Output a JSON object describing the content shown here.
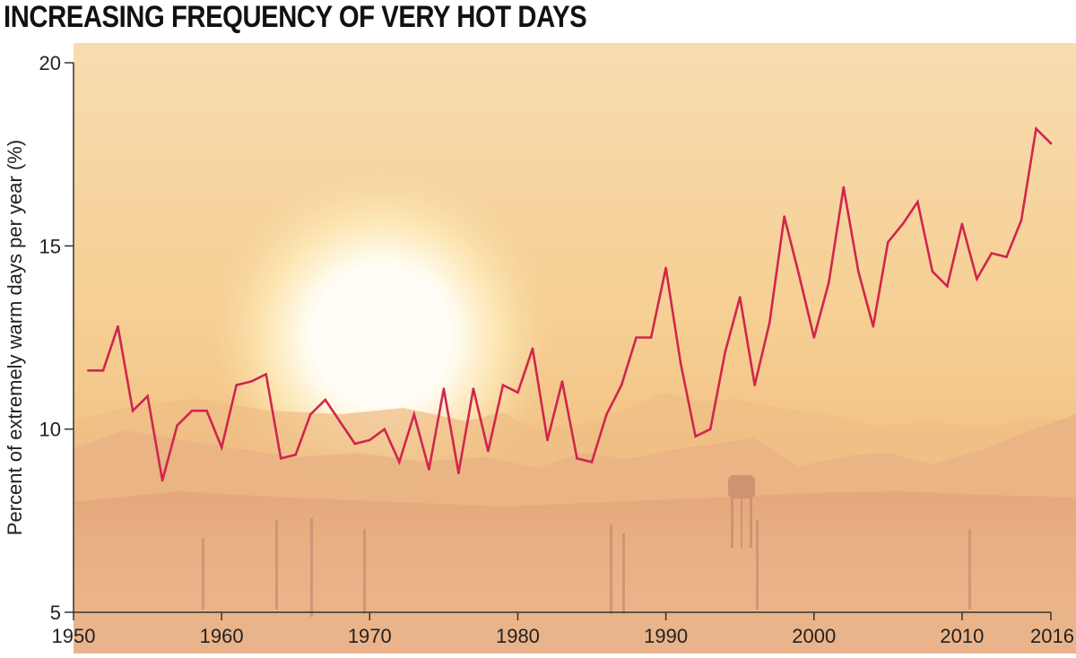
{
  "title": "INCREASING FREQUENCY OF VERY HOT DAYS",
  "colors": {
    "line": "#d0264e",
    "axis": "#333333",
    "sky_top": "#f7d9a8",
    "sky_mid": "#f5c98a",
    "ground": "#e8b07e"
  },
  "chart_data": {
    "type": "line",
    "title": "INCREASING FREQUENCY OF VERY HOT DAYS",
    "xlabel": "",
    "ylabel": "Percent of extremely warm days per year (%)",
    "xlim": [
      1950,
      2016
    ],
    "ylim": [
      5,
      20
    ],
    "x_ticks": [
      1950,
      1960,
      1970,
      1980,
      1990,
      2000,
      2010,
      2016
    ],
    "x_tick_labels": [
      "1950",
      "1960",
      "1970",
      "1980",
      "1990",
      "2000",
      "2010",
      "2016"
    ],
    "y_ticks": [
      5,
      10,
      15,
      20
    ],
    "y_tick_labels": [
      "5",
      "10",
      "15",
      "20"
    ],
    "grid": false,
    "series": [
      {
        "x": [
          1951,
          1952,
          1953,
          1954,
          1955,
          1956,
          1957,
          1958,
          1959,
          1960,
          1961,
          1962,
          1963,
          1964,
          1965,
          1966,
          1967,
          1968,
          1969,
          1970,
          1971,
          1972,
          1973,
          1974,
          1975,
          1976,
          1977,
          1978,
          1979,
          1980,
          1981,
          1982,
          1983,
          1984,
          1985,
          1986,
          1987,
          1988,
          1989,
          1990,
          1991,
          1992,
          1993,
          1994,
          1995,
          1996,
          1997,
          1998,
          1999,
          2000,
          2001,
          2002,
          2003,
          2004,
          2005,
          2006,
          2007,
          2008,
          2009,
          2010,
          2011,
          2012,
          2013,
          2014,
          2015,
          2016
        ],
        "y": [
          11.6,
          11.6,
          12.8,
          10.5,
          10.9,
          8.6,
          10.1,
          10.5,
          10.5,
          9.5,
          11.2,
          11.3,
          11.5,
          9.2,
          9.3,
          10.4,
          10.8,
          10.2,
          9.6,
          9.7,
          10.0,
          9.1,
          10.4,
          8.9,
          11.1,
          8.8,
          11.1,
          9.4,
          11.2,
          11.0,
          12.2,
          9.7,
          11.3,
          9.2,
          9.1,
          10.4,
          11.2,
          12.5,
          12.5,
          14.4,
          11.8,
          9.8,
          10.0,
          12.1,
          13.6,
          11.2,
          12.9,
          15.8,
          14.2,
          12.5,
          14.0,
          16.6,
          14.3,
          12.8,
          15.1,
          15.6,
          16.2,
          14.3,
          13.9,
          15.6,
          14.1,
          14.8,
          14.7,
          15.7,
          18.2,
          17.8
        ]
      }
    ]
  }
}
